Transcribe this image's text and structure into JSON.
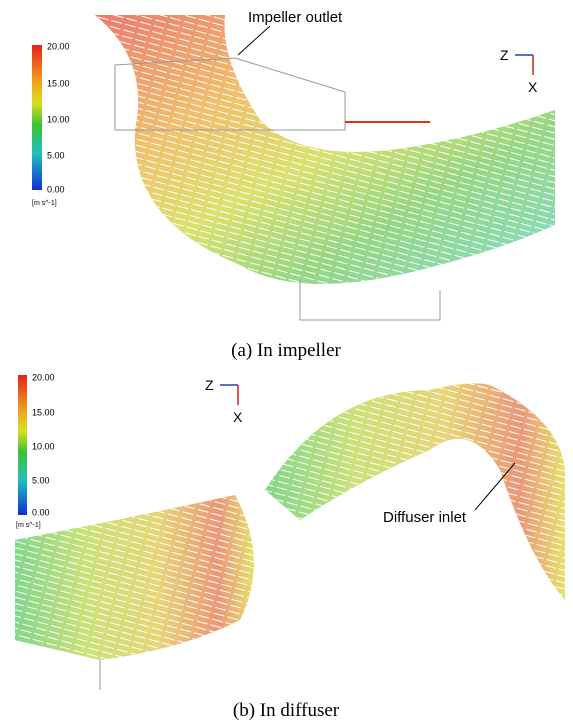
{
  "panels": [
    {
      "colorbar": {
        "ticks": [
          "20.00",
          "15.00",
          "10.00",
          "5.00",
          "0.00"
        ],
        "unit": "[m s^-1]"
      },
      "axes": {
        "horizontal": "Z",
        "vertical": "X"
      },
      "annotation": "Impeller outlet",
      "caption": "(a) In impeller"
    },
    {
      "colorbar": {
        "ticks": [
          "20.00",
          "15.00",
          "10.00",
          "5.00",
          "0.00"
        ],
        "unit": "[m s^-1]"
      },
      "axes": {
        "horizontal": "Z",
        "vertical": "X"
      },
      "annotation": "Diffuser inlet",
      "caption": "(b) In diffuser"
    }
  ]
}
